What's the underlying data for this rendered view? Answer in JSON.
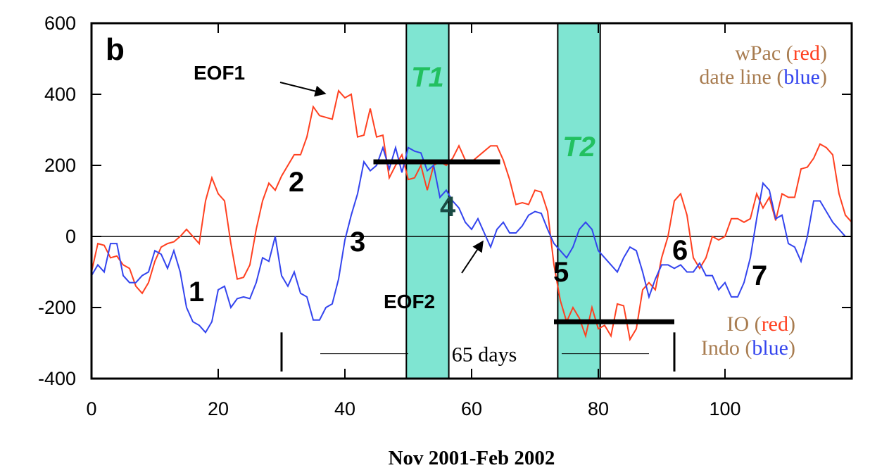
{
  "chart_data": {
    "type": "line",
    "x": [
      0,
      1,
      2,
      3,
      4,
      5,
      6,
      7,
      8,
      9,
      10,
      11,
      12,
      13,
      14,
      15,
      16,
      17,
      18,
      19,
      20,
      21,
      22,
      23,
      24,
      25,
      26,
      27,
      28,
      29,
      30,
      31,
      32,
      33,
      34,
      35,
      36,
      37,
      38,
      39,
      40,
      41,
      42,
      43,
      44,
      45,
      46,
      47,
      48,
      49,
      50,
      51,
      52,
      53,
      54,
      55,
      56,
      57,
      58,
      59,
      60,
      61,
      62,
      63,
      64,
      65,
      66,
      67,
      68,
      69,
      70,
      71,
      72,
      73,
      74,
      75,
      76,
      77,
      78,
      79,
      80,
      81,
      82,
      83,
      84,
      85,
      86,
      87,
      88,
      89,
      90,
      91,
      92,
      93,
      94,
      95,
      96,
      97,
      98,
      99,
      100,
      101,
      102,
      103,
      104,
      105,
      106,
      107,
      108,
      109,
      110,
      111,
      112,
      113,
      114,
      115,
      116,
      117,
      118,
      119,
      120
    ],
    "series": [
      {
        "name": "EOF1",
        "color": "#ff4020",
        "values": [
          -100,
          -20,
          -25,
          -60,
          -55,
          -80,
          -90,
          -140,
          -160,
          -130,
          -70,
          -30,
          -20,
          -15,
          0,
          20,
          0,
          -20,
          100,
          165,
          120,
          100,
          -20,
          -120,
          -115,
          -80,
          20,
          100,
          150,
          130,
          170,
          200,
          230,
          230,
          280,
          365,
          340,
          335,
          330,
          410,
          390,
          400,
          280,
          285,
          360,
          280,
          285,
          165,
          200,
          230,
          160,
          165,
          200,
          130,
          200,
          210,
          200,
          220,
          255,
          215,
          210,
          225,
          240,
          255,
          255,
          215,
          160,
          90,
          95,
          90,
          130,
          125,
          70,
          -80,
          -180,
          -240,
          -200,
          -230,
          -280,
          -200,
          -260,
          -250,
          -280,
          -190,
          -195,
          -290,
          -260,
          -150,
          -130,
          -150,
          -60,
          0,
          100,
          120,
          60,
          -60,
          -90,
          -60,
          0,
          -10,
          0,
          50,
          50,
          40,
          50,
          120,
          80,
          110,
          45,
          120,
          110,
          110,
          190,
          195,
          220,
          260,
          250,
          230,
          120,
          60,
          40
        ]
      },
      {
        "name": "EOF2",
        "color": "#3344ee",
        "values": [
          -110,
          -80,
          -100,
          -20,
          -20,
          -110,
          -130,
          -130,
          -110,
          -100,
          -40,
          -50,
          -90,
          -40,
          -100,
          -200,
          -240,
          -250,
          -270,
          -240,
          -150,
          -140,
          -200,
          -175,
          -170,
          -175,
          -130,
          -60,
          -70,
          0,
          -110,
          -140,
          -100,
          -160,
          -170,
          -235,
          -235,
          -200,
          -190,
          -120,
          -10,
          60,
          120,
          210,
          185,
          200,
          250,
          190,
          250,
          180,
          250,
          240,
          235,
          185,
          200,
          110,
          130,
          100,
          80,
          40,
          20,
          50,
          10,
          -30,
          20,
          40,
          10,
          10,
          30,
          60,
          70,
          65,
          20,
          -20,
          -40,
          -60,
          -30,
          20,
          40,
          20,
          -40,
          -60,
          -80,
          -100,
          -60,
          -30,
          -40,
          -100,
          -170,
          -120,
          -80,
          -80,
          -90,
          -80,
          -100,
          -100,
          -75,
          -110,
          -110,
          -150,
          -130,
          -170,
          -170,
          -130,
          -60,
          50,
          150,
          130,
          50,
          60,
          -20,
          -30,
          -70,
          0,
          100,
          100,
          70,
          40,
          20,
          0,
          0
        ]
      }
    ],
    "xlim": [
      0,
      120
    ],
    "xticks": [
      0,
      20,
      40,
      60,
      80,
      100
    ],
    "ylim": [
      -400,
      600
    ],
    "yticks": [
      -400,
      -200,
      0,
      200,
      400,
      600
    ],
    "xlabel": "Nov 2001-Feb 2002",
    "zero_line": true,
    "shaded": [
      {
        "label": "T1",
        "xlim": [
          49.7,
          56.4
        ],
        "color": "#7fe5d2"
      },
      {
        "label": "T2",
        "xlim": [
          73.6,
          80.3
        ],
        "color": "#7fe5d2"
      }
    ],
    "bars": [
      {
        "xlim": [
          44.5,
          64.5
        ],
        "y": 210
      },
      {
        "xlim": [
          73,
          92
        ],
        "y": -240
      }
    ],
    "duration": {
      "label": "65 days",
      "xlim": [
        30,
        92
      ]
    },
    "panel_label": "b",
    "labels": [
      "EOF1",
      "EOF2",
      "1",
      "2",
      "3",
      "4",
      "5",
      "6",
      "7"
    ],
    "legend_top": [
      [
        {
          "text": "wPac (",
          "color": "#a87c50"
        },
        {
          "text": "red",
          "color": "#ff4020"
        },
        {
          "text": ")",
          "color": "#a87c50"
        }
      ],
      [
        {
          "text": "date line (",
          "color": "#a87c50"
        },
        {
          "text": "blue",
          "color": "#3344ee"
        },
        {
          "text": ")",
          "color": "#a87c50"
        }
      ]
    ],
    "legend_bottom": [
      [
        {
          "text": "IO (",
          "color": "#a87c50"
        },
        {
          "text": "red",
          "color": "#ff4020"
        },
        {
          "text": ")",
          "color": "#a87c50"
        }
      ],
      [
        {
          "text": "Indo (",
          "color": "#a87c50"
        },
        {
          "text": "blue",
          "color": "#3344ee"
        },
        {
          "text": ")",
          "color": "#a87c50"
        }
      ]
    ]
  }
}
